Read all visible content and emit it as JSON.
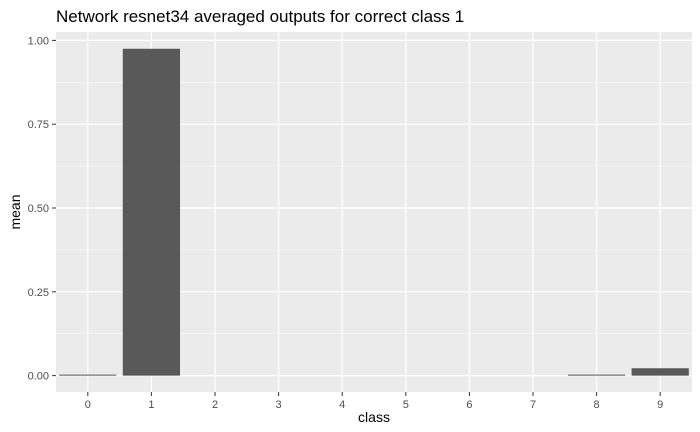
{
  "chart_data": {
    "type": "bar",
    "title": "Network resnet34 averaged outputs for correct class 1",
    "xlabel": "class",
    "ylabel": "mean",
    "categories": [
      "0",
      "1",
      "2",
      "3",
      "4",
      "5",
      "6",
      "7",
      "8",
      "9"
    ],
    "values": [
      0.003,
      0.975,
      0.0,
      0.0,
      0.0,
      0.0,
      0.0,
      0.0,
      0.003,
      0.022
    ],
    "ylim": [
      -0.0488,
      1.025
    ],
    "yticks": [
      0.0,
      0.25,
      0.5,
      0.75,
      1.0
    ],
    "ytick_labels": [
      "0.00",
      "0.25",
      "0.50",
      "0.75",
      "1.00"
    ],
    "grid": true,
    "legend": "none",
    "colors": {
      "panel_background": "#ebebeb",
      "grid_major": "#ffffff",
      "bar_fill": "#595959",
      "tick_text": "#4d4d4d",
      "tick_mark": "#333333"
    }
  }
}
